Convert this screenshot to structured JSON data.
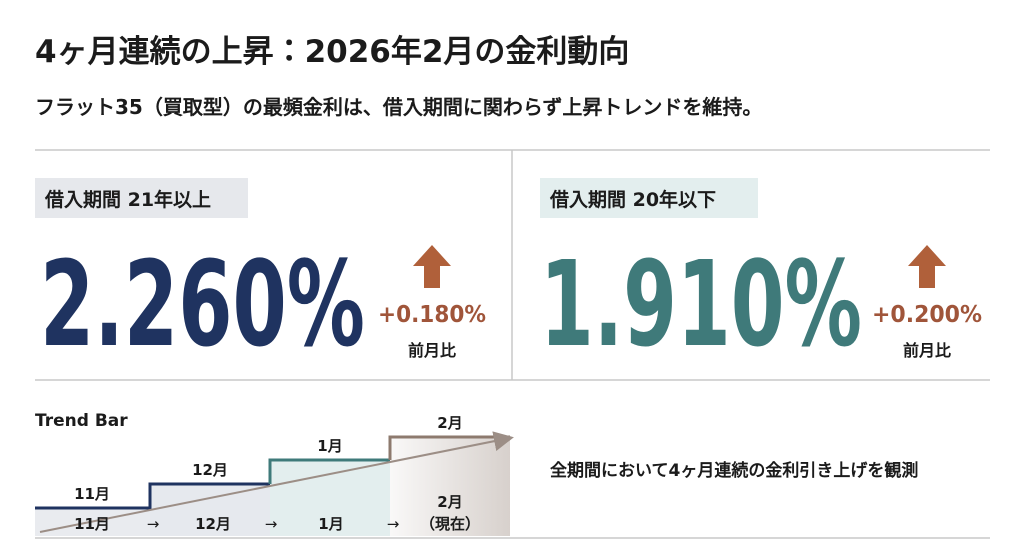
{
  "header": {
    "title": "4ヶ月連続の上昇：2026年2月の金利動向",
    "subtitle": "フラット35（買取型）の最頻金利は、借入期間に関わらず上昇トレンドを維持。"
  },
  "panels": [
    {
      "label": "借入期間 21年以上",
      "rate": "2.260%",
      "change": "+0.180%",
      "change_label": "前月比"
    },
    {
      "label": "借入期間 20年以下",
      "rate": "1.910%",
      "change": "+0.200%",
      "change_label": "前月比"
    }
  ],
  "trend": {
    "title": "Trend Bar",
    "steps": [
      "11月",
      "12月",
      "1月",
      "2月"
    ],
    "timeline": [
      "11月",
      "12月",
      "1月",
      "2月"
    ],
    "current": "（現在）",
    "arrow": "→",
    "note": "全期間において4ヶ月連続の金利引き上げを観測"
  }
}
